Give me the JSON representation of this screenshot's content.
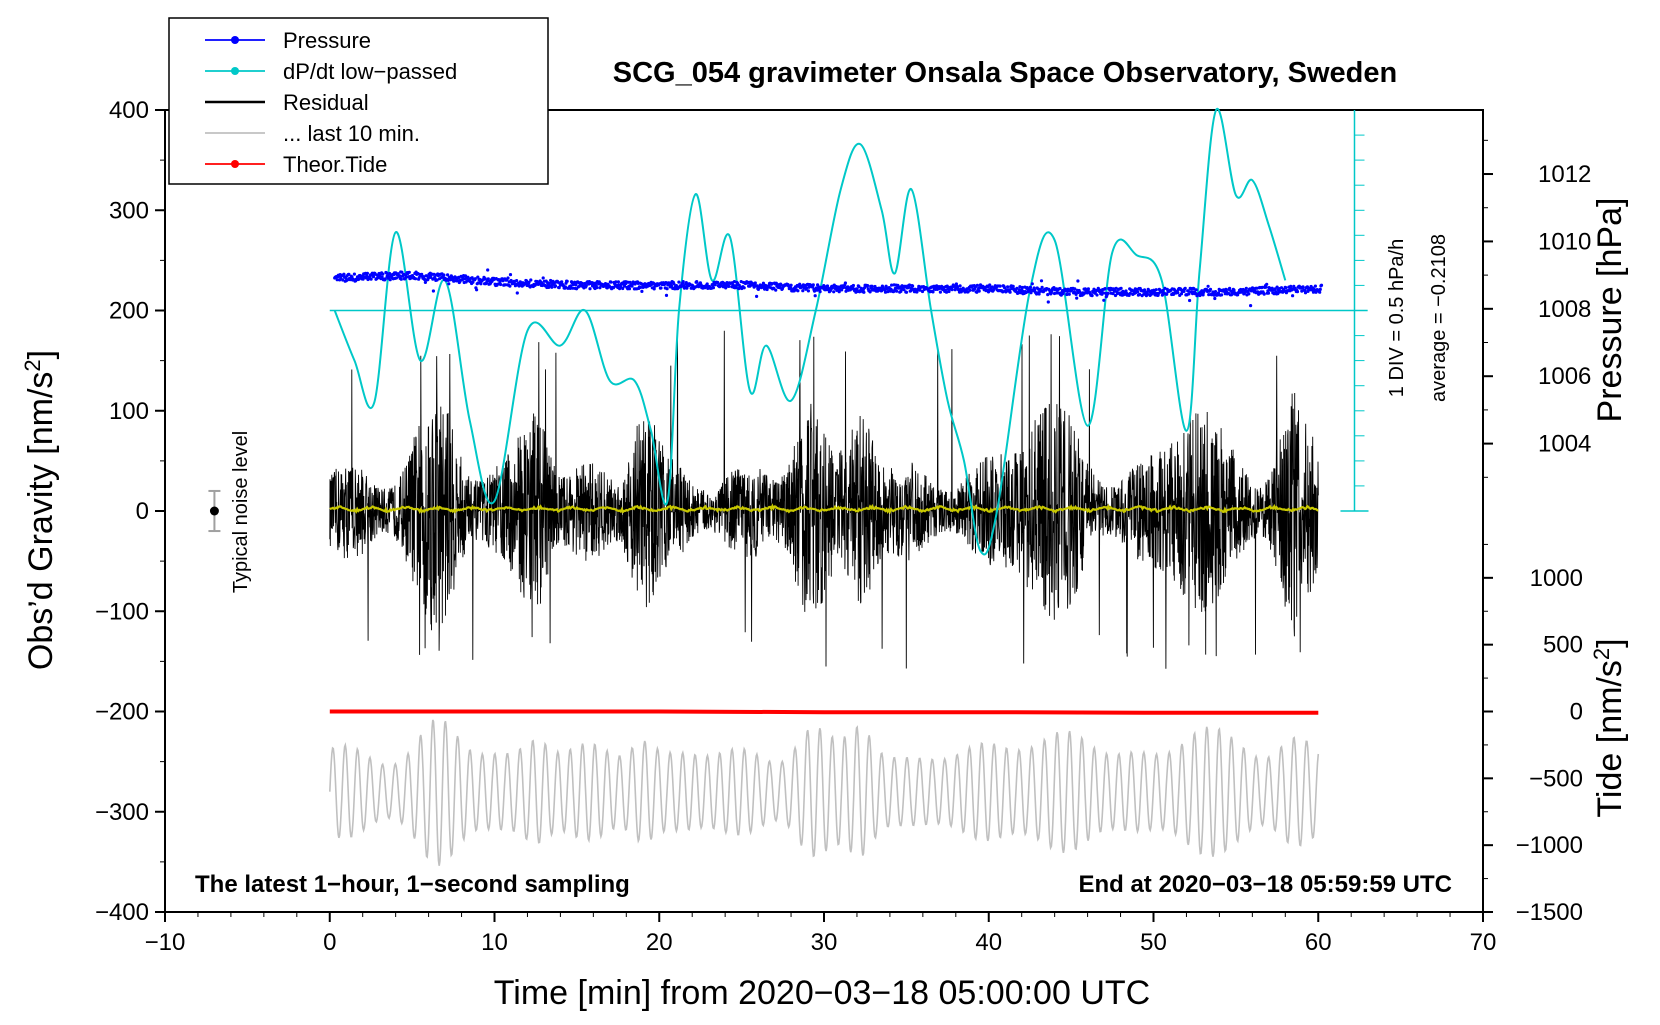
{
  "chart_data": {
    "type": "line",
    "title": "SCG_054 gravimeter Onsala Space Observatory, Sweden",
    "xlabel": "Time [min] from 2020−03−18 05:00:00 UTC",
    "ylabel_left": "Obs’d Gravity [nm/s²]",
    "ylabel_left_base": "Obs’d Gravity [nm/s",
    "ylabel_left_sup": "2",
    "ylabel_left_end": "]",
    "ylabel_pressure": "Pressure [hPa]",
    "ylabel_tide": "Tide [nm/s²]",
    "ylabel_tide_base": "Tide [nm/s",
    "ylabel_tide_sup": "2",
    "ylabel_tide_end": "]",
    "xlim": [
      -10,
      70
    ],
    "ylim": [
      -400,
      400
    ],
    "xticks": [
      -10,
      0,
      10,
      20,
      30,
      40,
      50,
      60,
      70
    ],
    "xtick_labels": [
      "−10",
      "0",
      "10",
      "20",
      "30",
      "40",
      "50",
      "60",
      "70"
    ],
    "yticks": [
      -400,
      -300,
      -200,
      -100,
      0,
      100,
      200,
      300,
      400
    ],
    "ytick_labels": [
      "−400",
      "−300",
      "−200",
      "−100",
      "0",
      "100",
      "200",
      "300",
      "400"
    ],
    "pressure_axis": {
      "ticks": [
        1004,
        1006,
        1008,
        1010,
        1012
      ],
      "tick_labels": [
        "1004",
        "1006",
        "1008",
        "1010",
        "1012"
      ],
      "ylim": [
        1002.0,
        1013.9
      ]
    },
    "tide_axis": {
      "ticks": [
        -1500,
        -1000,
        -500,
        0,
        500,
        1000
      ],
      "tick_labels": [
        "−1500",
        "−1000",
        "−500",
        "0",
        "500",
        "1000"
      ],
      "ylim": [
        -1500,
        1500
      ]
    },
    "dpdt_scale": {
      "div_label": "1 DIV = 0.5 hPa/h",
      "average_label": "average = −0.2108",
      "baseline_gravity": 200
    },
    "noise_bar": {
      "label": "Typical noise level",
      "x": -7,
      "y": 0,
      "err": 20
    },
    "annotations": {
      "left": "The latest 1−hour, 1−second sampling",
      "right": "End at 2020−03−18 05:59:59 UTC"
    },
    "legend": [
      {
        "label": "Pressure",
        "color": "#0000ff",
        "marker": true
      },
      {
        "label": "dP/dt low−passed",
        "color": "#00c8c8",
        "marker": true
      },
      {
        "label": "Residual",
        "color": "#000000",
        "marker": false
      },
      {
        "label": "... last 10 min.",
        "color": "#c0c0c0",
        "marker": false
      },
      {
        "label": "Theor.Tide",
        "color": "#ff0000",
        "marker": true
      }
    ],
    "series": [
      {
        "name": "Pressure",
        "axis": "pressure",
        "x": [
          0,
          5,
          10,
          15,
          20,
          25,
          30,
          35,
          40,
          45,
          50,
          55,
          60
        ],
        "values": [
          1008.9,
          1009.0,
          1008.8,
          1008.7,
          1008.7,
          1008.7,
          1008.6,
          1008.6,
          1008.6,
          1008.5,
          1008.5,
          1008.5,
          1008.6
        ]
      },
      {
        "name": "dP/dt low−passed",
        "axis": "gravity",
        "x": [
          0.3,
          1.5,
          2.7,
          4.0,
          5.5,
          7.0,
          8.5,
          10.0,
          12.0,
          14.0,
          15.5,
          17.0,
          18.5,
          19.5,
          20.5,
          21.2,
          22.2,
          23.2,
          24.3,
          25.5,
          26.5,
          28.0,
          29.5,
          31.0,
          32.2,
          33.5,
          34.3,
          35.3,
          36.5,
          37.5,
          38.5,
          39.5,
          40.5,
          42.5,
          44.0,
          46.0,
          47.5,
          49.0,
          50.5,
          52.0,
          52.8,
          53.8,
          55.0,
          56.0,
          57.0,
          58.0
        ],
        "values": [
          200,
          150,
          108,
          278,
          150,
          230,
          90,
          10,
          180,
          165,
          200,
          130,
          130,
          80,
          10,
          200,
          316,
          230,
          273,
          120,
          165,
          110,
          200,
          320,
          366,
          300,
          237,
          321,
          200,
          110,
          50,
          -40,
          0,
          220,
          270,
          85,
          258,
          255,
          230,
          80,
          240,
          400,
          315,
          330,
          285,
          230
        ]
      },
      {
        "name": "Residual",
        "axis": "gravity",
        "x_range": [
          0,
          60
        ],
        "amplitude_range": [
          -160,
          180
        ]
      },
      {
        "name": "... last 10 min.",
        "axis": "gravity",
        "x_range": [
          0,
          60
        ],
        "amplitude_range": [
          -360,
          -200
        ]
      },
      {
        "name": "Theor.Tide",
        "axis": "tide",
        "x": [
          0,
          10,
          20,
          30,
          40,
          50,
          60
        ],
        "values": [
          0,
          0,
          0,
          -5,
          -5,
          -10,
          -10
        ]
      }
    ]
  }
}
